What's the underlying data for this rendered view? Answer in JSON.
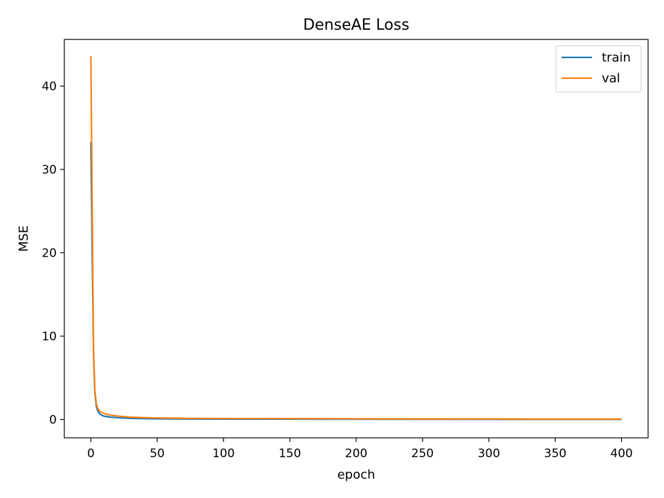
{
  "chart_data": {
    "type": "line",
    "title": "DenseAE Loss",
    "xlabel": "epoch",
    "ylabel": "MSE",
    "xlim": [
      -20,
      420
    ],
    "ylim": [
      -2.2,
      45.6
    ],
    "xticks": [
      0,
      50,
      100,
      150,
      200,
      250,
      300,
      350,
      400
    ],
    "yticks": [
      0,
      10,
      20,
      30,
      40
    ],
    "legend_position": "top-right",
    "grid": false,
    "series": [
      {
        "name": "train",
        "color": "#1f77b4",
        "x": [
          0,
          1,
          2,
          3,
          4,
          5,
          6,
          7,
          8,
          10,
          12,
          15,
          20,
          25,
          30,
          40,
          50,
          75,
          100,
          150,
          200,
          250,
          300,
          350,
          400
        ],
        "values": [
          33.3,
          20.0,
          7.8,
          3.2,
          1.7,
          1.1,
          0.8,
          0.62,
          0.52,
          0.4,
          0.34,
          0.28,
          0.22,
          0.17,
          0.13,
          0.1,
          0.08,
          0.06,
          0.05,
          0.04,
          0.03,
          0.03,
          0.02,
          0.02,
          0.02
        ]
      },
      {
        "name": "val",
        "color": "#ff7f0e",
        "x": [
          0,
          1,
          2,
          3,
          4,
          5,
          6,
          7,
          8,
          10,
          12,
          15,
          20,
          25,
          30,
          40,
          50,
          75,
          100,
          150,
          200,
          250,
          300,
          350,
          400
        ],
        "values": [
          43.6,
          26.0,
          8.3,
          3.6,
          2.0,
          1.4,
          1.1,
          0.95,
          0.85,
          0.72,
          0.62,
          0.52,
          0.42,
          0.34,
          0.28,
          0.22,
          0.18,
          0.14,
          0.12,
          0.1,
          0.08,
          0.07,
          0.07,
          0.06,
          0.06
        ]
      }
    ]
  }
}
